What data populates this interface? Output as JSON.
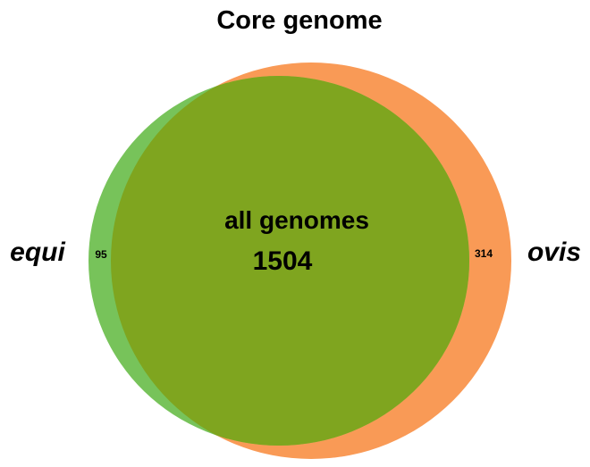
{
  "title": "Core genome",
  "sets": [
    {
      "label": "equi",
      "color": "#77C35A"
    },
    {
      "label": "ovis",
      "color": "#F99A56"
    }
  ],
  "intersection": {
    "label": "all genomes",
    "count": "1504",
    "color": "#7FA51F"
  },
  "unique_counts": {
    "equi": "95",
    "ovis": "314"
  }
}
